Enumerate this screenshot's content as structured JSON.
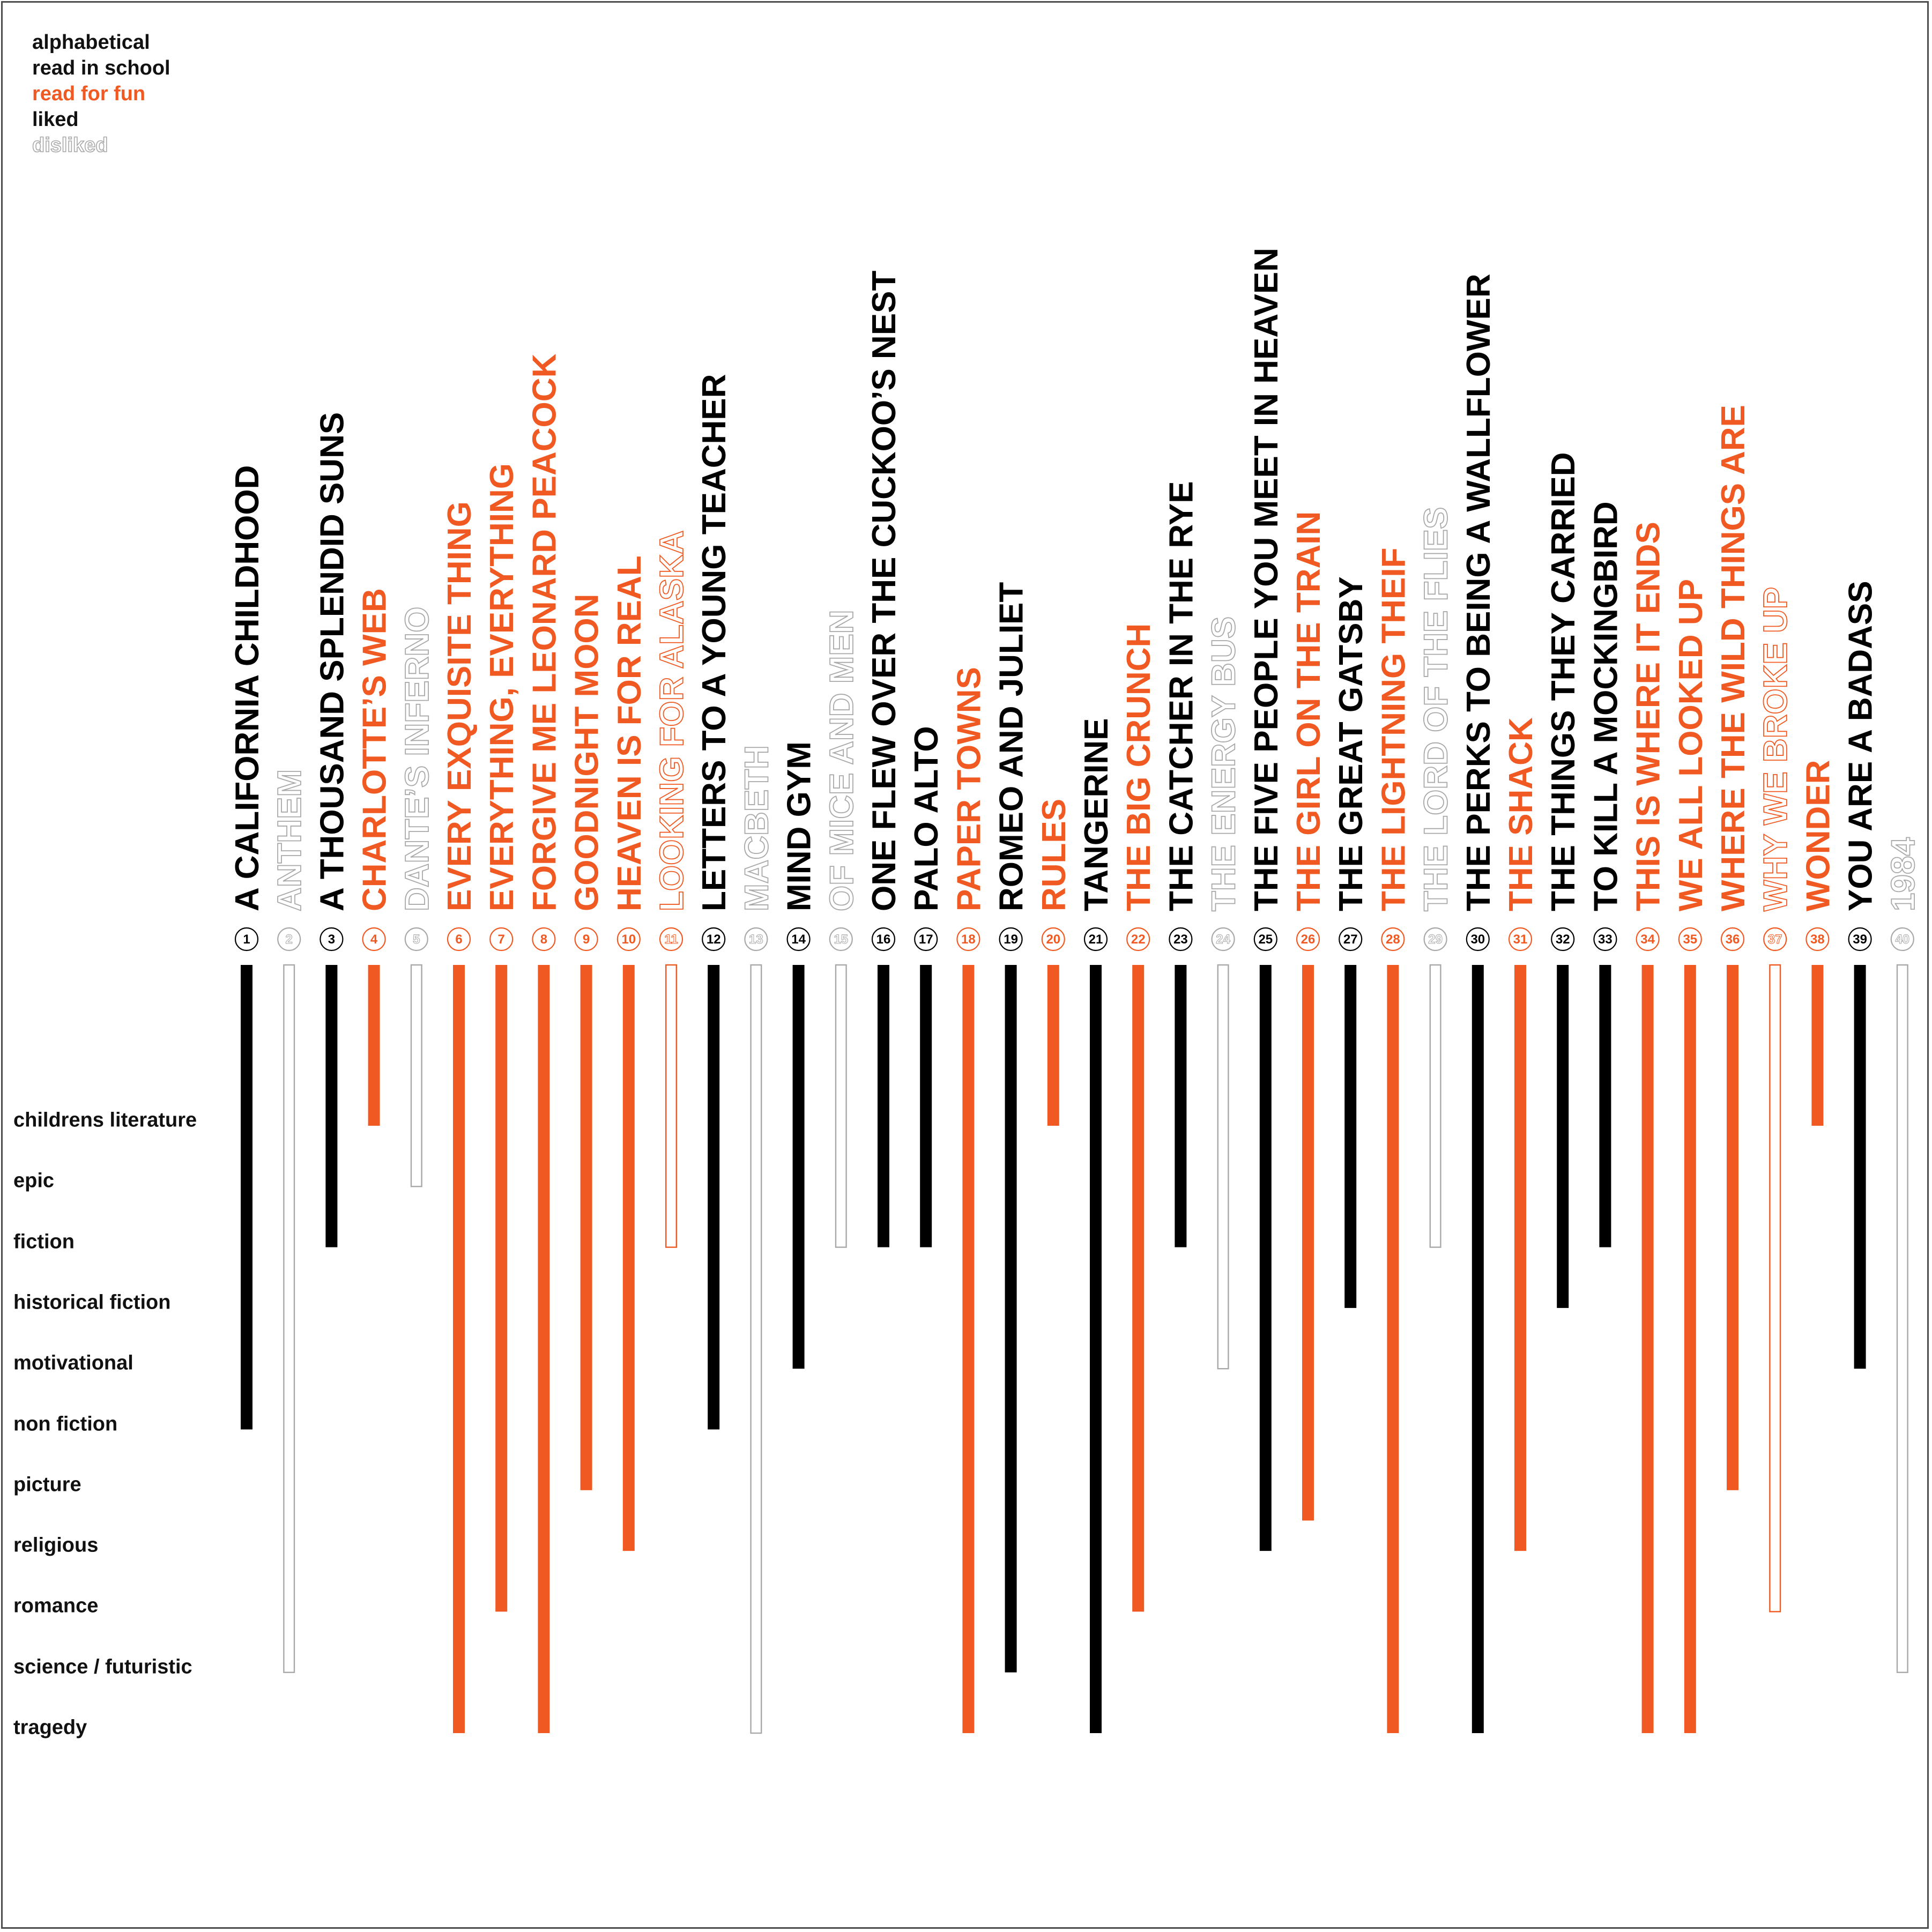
{
  "chart_data": {
    "type": "bar",
    "legend": {
      "items": [
        {
          "label": "alphabetical",
          "style": "black"
        },
        {
          "label": "read in school",
          "style": "black"
        },
        {
          "label": "read for fun",
          "style": "orange"
        },
        {
          "label": "liked",
          "style": "black"
        },
        {
          "label": "disliked",
          "style": "outline"
        }
      ]
    },
    "genres": [
      "childrens literature",
      "epic",
      "fiction",
      "historical fiction",
      "motivational",
      "non fiction",
      "picture",
      "religious",
      "romance",
      "science / futuristic",
      "tragedy"
    ],
    "colors": {
      "school": "#000000",
      "fun": "#f05a22",
      "disliked_school": "#a8a8a8",
      "disliked_fun": "#f05a22"
    },
    "books": [
      {
        "num": "1",
        "title": "A CALIFORNIA CHILDHOOD",
        "reason": "school",
        "liked": true,
        "genre_index": 5
      },
      {
        "num": "2",
        "title": "ANTHEM",
        "reason": "school",
        "liked": false,
        "genre_index": 9
      },
      {
        "num": "3",
        "title": "A THOUSAND SPLENDID SUNS",
        "reason": "school",
        "liked": true,
        "genre_index": 2
      },
      {
        "num": "4",
        "title": "CHARLOTTE’S WEB",
        "reason": "fun",
        "liked": true,
        "genre_index": 0
      },
      {
        "num": "5",
        "title": "DANTE’S INFERNO",
        "reason": "school",
        "liked": false,
        "genre_index": 1
      },
      {
        "num": "6",
        "title": "EVERY EXQUISITE THING",
        "reason": "fun",
        "liked": true,
        "genre_index": 10
      },
      {
        "num": "7",
        "title": "EVERYTHING, EVERYTHING",
        "reason": "fun",
        "liked": true,
        "genre_index": 8
      },
      {
        "num": "8",
        "title": "FORGIVE ME LEONARD PEACOCK",
        "reason": "fun",
        "liked": true,
        "genre_index": 10
      },
      {
        "num": "9",
        "title": "GOODNIGHT MOON",
        "reason": "fun",
        "liked": true,
        "genre_index": 6
      },
      {
        "num": "10",
        "title": "HEAVEN IS FOR REAL",
        "reason": "fun",
        "liked": true,
        "genre_index": 7
      },
      {
        "num": "11",
        "title": "LOOKING FOR ALASKA",
        "reason": "fun",
        "liked": false,
        "genre_index": 2
      },
      {
        "num": "12",
        "title": "LETTERS TO A YOUNG TEACHER",
        "reason": "school",
        "liked": true,
        "genre_index": 5
      },
      {
        "num": "13",
        "title": "MACBETH",
        "reason": "school",
        "liked": false,
        "genre_index": 10
      },
      {
        "num": "14",
        "title": "MIND GYM",
        "reason": "school",
        "liked": true,
        "genre_index": 4
      },
      {
        "num": "15",
        "title": "OF MICE AND MEN",
        "reason": "school",
        "liked": false,
        "genre_index": 2
      },
      {
        "num": "16",
        "title": "ONE FLEW OVER THE CUCKOO’S NEST",
        "reason": "school",
        "liked": true,
        "genre_index": 2
      },
      {
        "num": "17",
        "title": "PALO ALTO",
        "reason": "school",
        "liked": true,
        "genre_index": 2
      },
      {
        "num": "18",
        "title": "PAPER TOWNS",
        "reason": "fun",
        "liked": true,
        "genre_index": 10
      },
      {
        "num": "19",
        "title": "ROMEO AND JULIET",
        "reason": "school",
        "liked": true,
        "genre_index": 9
      },
      {
        "num": "20",
        "title": "RULES",
        "reason": "fun",
        "liked": true,
        "genre_index": 0
      },
      {
        "num": "21",
        "title": "TANGERINE",
        "reason": "school",
        "liked": true,
        "genre_index": 10
      },
      {
        "num": "22",
        "title": "THE BIG CRUNCH",
        "reason": "fun",
        "liked": true,
        "genre_index": 8
      },
      {
        "num": "23",
        "title": "THE CATCHER IN THE RYE",
        "reason": "school",
        "liked": true,
        "genre_index": 2
      },
      {
        "num": "24",
        "title": "THE ENERGY BUS",
        "reason": "school",
        "liked": false,
        "genre_index": 4
      },
      {
        "num": "25",
        "title": "THE FIVE PEOPLE YOU MEET IN HEAVEN",
        "reason": "school",
        "liked": true,
        "genre_index": 7
      },
      {
        "num": "26",
        "title": "THE GIRL ON THE TRAIN",
        "reason": "fun",
        "liked": true,
        "genre_index": 6.5
      },
      {
        "num": "27",
        "title": "THE GREAT GATSBY",
        "reason": "school",
        "liked": true,
        "genre_index": 3
      },
      {
        "num": "28",
        "title": "THE LIGHTNING THEIF",
        "reason": "fun",
        "liked": true,
        "genre_index": 10
      },
      {
        "num": "29",
        "title": "THE LORD OF THE FLIES",
        "reason": "school",
        "liked": false,
        "genre_index": 2
      },
      {
        "num": "30",
        "title": "THE PERKS TO BEING A WALLFLOWER",
        "reason": "school",
        "liked": true,
        "genre_index": 10
      },
      {
        "num": "31",
        "title": "THE SHACK",
        "reason": "fun",
        "liked": true,
        "genre_index": 7
      },
      {
        "num": "32",
        "title": "THE THINGS THEY CARRIED",
        "reason": "school",
        "liked": true,
        "genre_index": 3
      },
      {
        "num": "33",
        "title": "TO KILL A MOCKINGBIRD",
        "reason": "school",
        "liked": true,
        "genre_index": 2
      },
      {
        "num": "34",
        "title": "THIS IS WHERE IT ENDS",
        "reason": "fun",
        "liked": true,
        "genre_index": 10
      },
      {
        "num": "35",
        "title": "WE ALL LOOKED UP",
        "reason": "fun",
        "liked": true,
        "genre_index": 10
      },
      {
        "num": "36",
        "title": "WHERE THE WILD THINGS ARE",
        "reason": "fun",
        "liked": true,
        "genre_index": 6
      },
      {
        "num": "37",
        "title": "WHY WE BROKE UP",
        "reason": "fun",
        "liked": false,
        "genre_index": 8
      },
      {
        "num": "38",
        "title": "WONDER",
        "reason": "fun",
        "liked": true,
        "genre_index": 0
      },
      {
        "num": "39",
        "title": "YOU ARE A BADASS",
        "reason": "school",
        "liked": true,
        "genre_index": 4
      },
      {
        "num": "40",
        "title": "1984",
        "reason": "school",
        "liked": false,
        "genre_index": 9
      }
    ]
  }
}
